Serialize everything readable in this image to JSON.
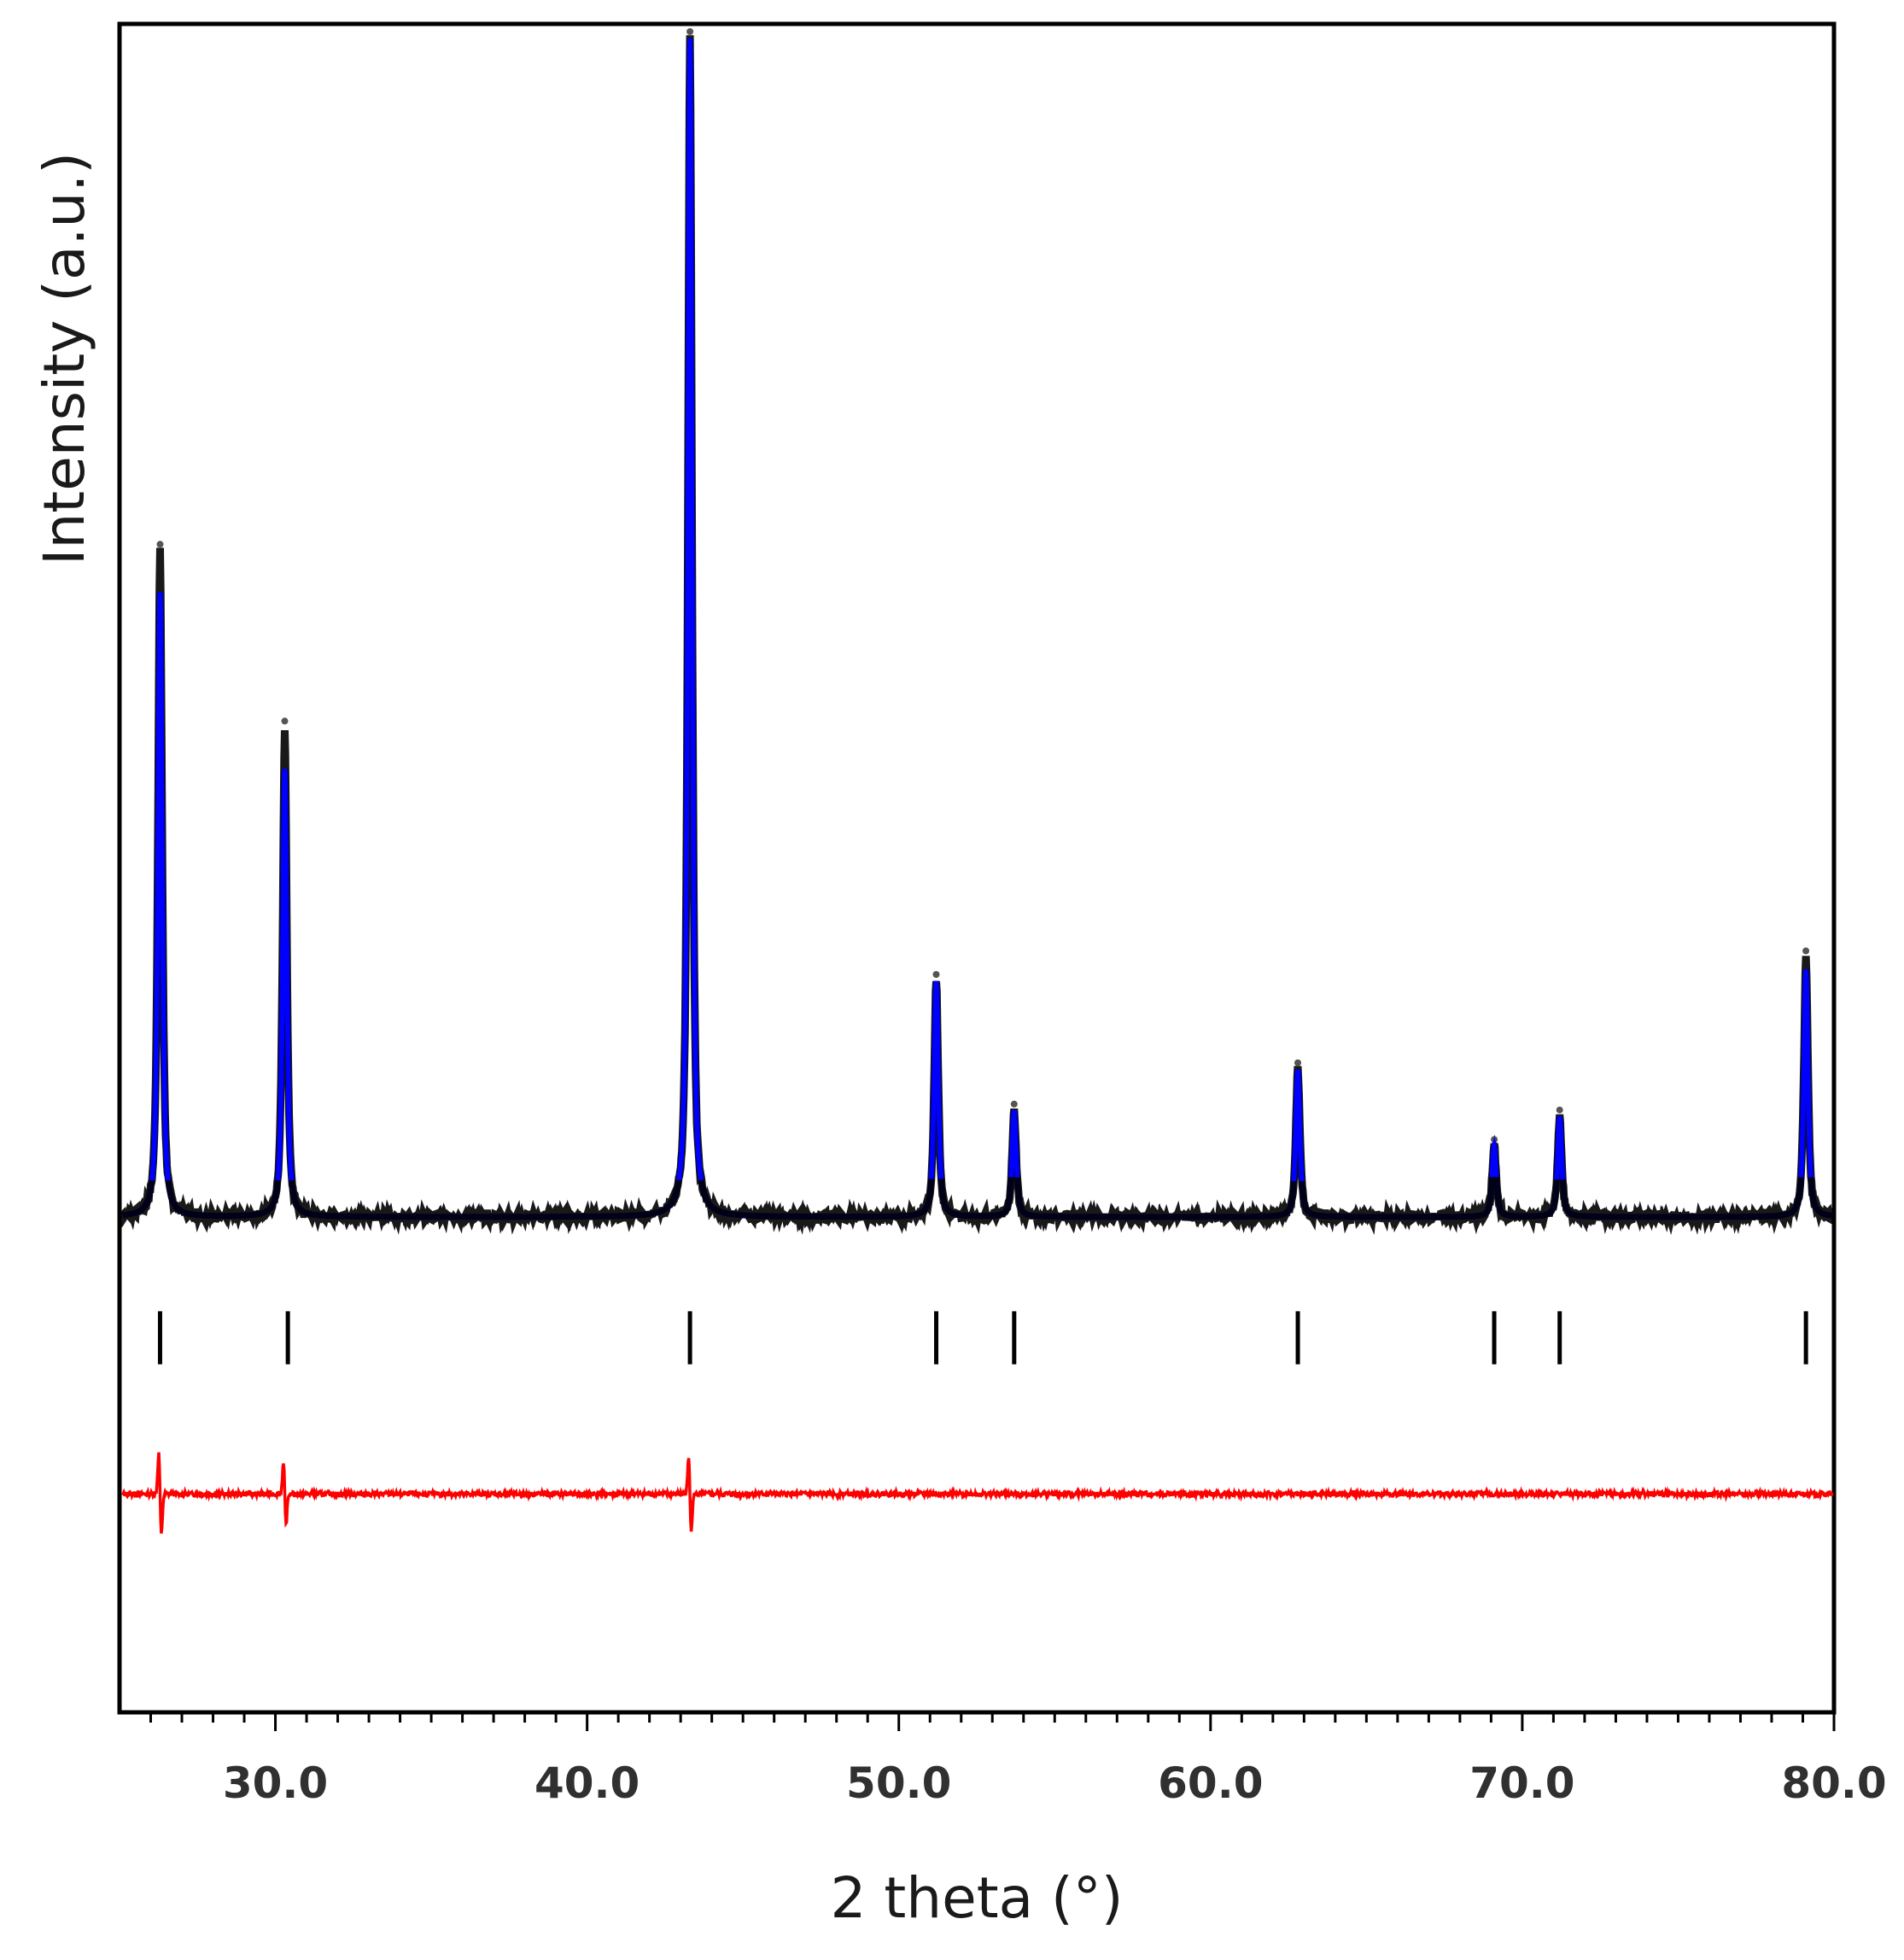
{
  "chart_data": {
    "type": "line",
    "title": "",
    "xlabel": "2 theta (°)",
    "ylabel": "Intensity (a.u.)",
    "xlim": [
      25.0,
      80.0
    ],
    "ylim": [
      -0.45,
      1.0
    ],
    "x_ticks": [
      30.0,
      40.0,
      50.0,
      60.0,
      70.0,
      80.0
    ],
    "x_tick_labels": [
      "30.0",
      "40.0",
      "50.0",
      "60.0",
      "70.0",
      "80.0"
    ],
    "minor_tick_step": 1.0,
    "y_ticks_shown": false,
    "grid": false,
    "legend": "none",
    "series": [
      {
        "role": "observed",
        "color": "#000000",
        "baseline": 0.0,
        "peaks": [
          {
            "x": 26.3,
            "y": 0.565
          },
          {
            "x": 30.3,
            "y": 0.415
          },
          {
            "x": 43.3,
            "y": 1.0
          },
          {
            "x": 51.2,
            "y": 0.2
          },
          {
            "x": 53.7,
            "y": 0.09
          },
          {
            "x": 62.8,
            "y": 0.125
          },
          {
            "x": 69.1,
            "y": 0.06
          },
          {
            "x": 71.2,
            "y": 0.085
          },
          {
            "x": 79.1,
            "y": 0.22
          }
        ]
      },
      {
        "role": "calculated",
        "color": "#0000ff",
        "baseline": 0.0,
        "peaks": [
          {
            "x": 26.3,
            "y": 0.53
          },
          {
            "x": 30.3,
            "y": 0.38
          },
          {
            "x": 43.3,
            "y": 1.0
          },
          {
            "x": 51.2,
            "y": 0.2
          },
          {
            "x": 53.7,
            "y": 0.09
          },
          {
            "x": 62.8,
            "y": 0.125
          },
          {
            "x": 69.1,
            "y": 0.06
          },
          {
            "x": 71.2,
            "y": 0.085
          },
          {
            "x": 79.1,
            "y": 0.21
          }
        ]
      },
      {
        "role": "difference",
        "color": "#ff0000",
        "baseline": -0.235,
        "features": [
          {
            "x": 26.3,
            "amplitude": 0.04
          },
          {
            "x": 30.3,
            "amplitude": 0.03
          },
          {
            "x": 43.3,
            "amplitude": 0.035
          }
        ]
      }
    ],
    "bragg_positions": {
      "color": "#000000",
      "y_top": -0.08,
      "y_bottom": -0.125,
      "x": [
        26.3,
        30.4,
        43.3,
        51.2,
        53.7,
        62.8,
        69.1,
        71.2,
        79.1
      ]
    }
  }
}
